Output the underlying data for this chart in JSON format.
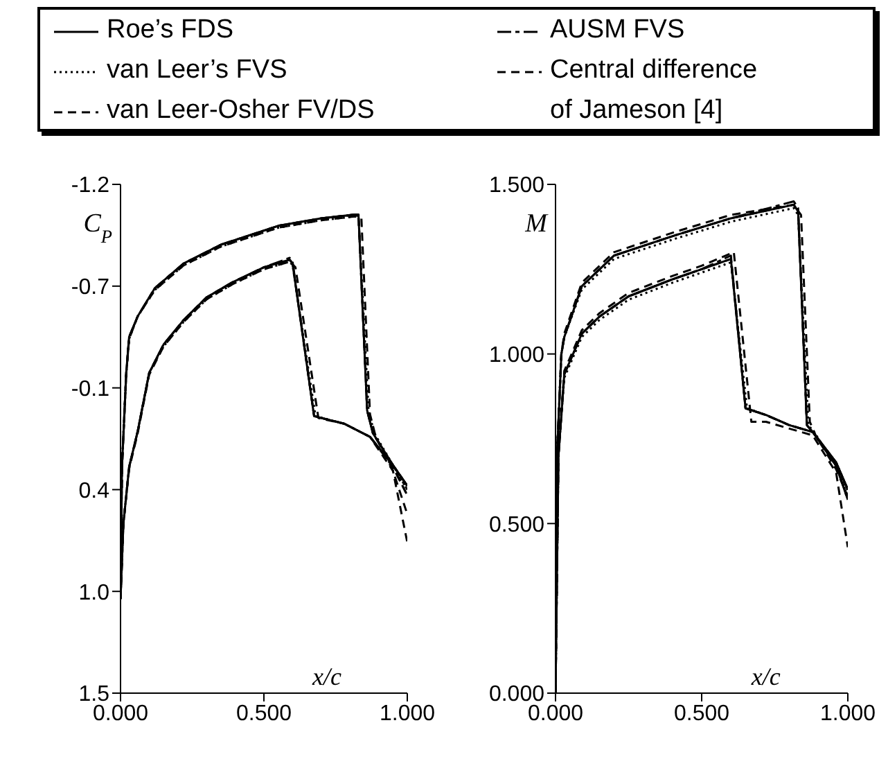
{
  "chart_data": [
    {
      "type": "line",
      "xlabel": "x/c",
      "ylabel": "C$_{P}$",
      "legend": "top",
      "marker": "none",
      "xlim": [
        0,
        1
      ],
      "xticks": [
        {
          "value": 0,
          "label": "0.000"
        },
        {
          "value": 0.5,
          "label": "0.500"
        },
        {
          "value": 1,
          "label": "1.000"
        }
      ],
      "ylim": [
        1.5,
        -1.2
      ],
      "yticks": [
        {
          "value": -1.2,
          "label": "-1.2"
        },
        {
          "value": -0.66,
          "label": "-0.7"
        },
        {
          "value": -0.12,
          "label": "-0.1"
        },
        {
          "value": 0.42,
          "label": "0.4"
        },
        {
          "value": 0.96,
          "label": "1.0"
        },
        {
          "value": 1.5,
          "label": "1.5"
        }
      ],
      "series": [
        {
          "name": "Roe’s FDS",
          "color": "#000000",
          "line_style": "solid",
          "x": [
            0.0,
            0.005,
            0.02,
            0.03,
            0.06,
            0.12,
            0.22,
            0.35,
            0.55,
            0.7,
            0.82,
            0.83,
            0.86,
            0.88,
            0.95,
            1.0
          ],
          "values": [
            1.0,
            0.3,
            -0.2,
            -0.39,
            -0.5,
            -0.65,
            -0.78,
            -0.88,
            -0.98,
            -1.02,
            -1.04,
            -1.03,
            0.0,
            0.12,
            0.29,
            0.4
          ]
        },
        {
          "color": "#000000",
          "line_style": "solid",
          "x": [
            0.0,
            0.01,
            0.03,
            0.06,
            0.1,
            0.15,
            0.22,
            0.3,
            0.39,
            0.5,
            0.59,
            0.6,
            0.675,
            0.78,
            0.87,
            0.95,
            1.0
          ],
          "values": [
            1.0,
            0.6,
            0.3,
            0.11,
            -0.2,
            -0.35,
            -0.48,
            -0.6,
            -0.68,
            -0.76,
            -0.8,
            -0.78,
            0.03,
            0.07,
            0.14,
            0.29,
            0.4
          ]
        },
        {
          "name": "van Leer’s FVS",
          "color": "#000000",
          "line_style": "dotted",
          "x": [
            0.0,
            0.005,
            0.02,
            0.03,
            0.06,
            0.12,
            0.22,
            0.35,
            0.55,
            0.7,
            0.82,
            0.83,
            0.865,
            0.885,
            0.95,
            1.0
          ],
          "values": [
            1.0,
            0.3,
            -0.2,
            -0.38,
            -0.5,
            -0.64,
            -0.77,
            -0.87,
            -0.97,
            -1.01,
            -1.03,
            -1.02,
            0.0,
            0.12,
            0.29,
            0.42
          ]
        },
        {
          "color": "#000000",
          "line_style": "dotted",
          "x": [
            0.0,
            0.01,
            0.03,
            0.06,
            0.1,
            0.15,
            0.22,
            0.3,
            0.39,
            0.5,
            0.59,
            0.6,
            0.68,
            0.78,
            0.87,
            0.95,
            1.0
          ],
          "values": [
            1.0,
            0.6,
            0.3,
            0.11,
            -0.2,
            -0.34,
            -0.47,
            -0.59,
            -0.67,
            -0.75,
            -0.79,
            -0.77,
            0.03,
            0.07,
            0.14,
            0.29,
            0.42
          ]
        },
        {
          "name": "van Leer-Osher FV/DS",
          "color": "#000000",
          "line_style": "dashed",
          "x": [
            0.0,
            0.005,
            0.02,
            0.03,
            0.06,
            0.12,
            0.22,
            0.35,
            0.55,
            0.7,
            0.82,
            0.83,
            0.86,
            0.88,
            0.95,
            1.0
          ],
          "values": [
            1.0,
            0.3,
            -0.2,
            -0.39,
            -0.5,
            -0.65,
            -0.78,
            -0.88,
            -0.98,
            -1.02,
            -1.04,
            -1.03,
            0.0,
            0.12,
            0.3,
            0.45
          ]
        },
        {
          "color": "#000000",
          "line_style": "dashed",
          "x": [
            0.0,
            0.01,
            0.03,
            0.06,
            0.1,
            0.15,
            0.22,
            0.3,
            0.39,
            0.5,
            0.59,
            0.6,
            0.675,
            0.78,
            0.87,
            0.95,
            1.0
          ],
          "values": [
            1.0,
            0.6,
            0.3,
            0.11,
            -0.2,
            -0.35,
            -0.48,
            -0.6,
            -0.68,
            -0.76,
            -0.8,
            -0.78,
            0.03,
            0.07,
            0.14,
            0.3,
            0.45
          ]
        },
        {
          "name": "AUSM FVS",
          "color": "#000000",
          "line_style": "dashdot",
          "x": [
            0.0,
            0.005,
            0.02,
            0.03,
            0.06,
            0.12,
            0.22,
            0.35,
            0.55,
            0.7,
            0.82,
            0.83,
            0.86,
            0.88,
            0.95,
            1.0
          ],
          "values": [
            1.0,
            0.3,
            -0.2,
            -0.39,
            -0.5,
            -0.65,
            -0.78,
            -0.88,
            -0.98,
            -1.02,
            -1.04,
            -1.04,
            0.0,
            0.12,
            0.29,
            0.4
          ]
        },
        {
          "color": "#000000",
          "line_style": "dashdot",
          "x": [
            0.0,
            0.01,
            0.03,
            0.06,
            0.1,
            0.15,
            0.22,
            0.3,
            0.39,
            0.5,
            0.59,
            0.6,
            0.675,
            0.78,
            0.87,
            0.95,
            1.0
          ],
          "values": [
            1.0,
            0.6,
            0.3,
            0.11,
            -0.2,
            -0.35,
            -0.48,
            -0.6,
            -0.68,
            -0.76,
            -0.81,
            -0.79,
            0.03,
            0.07,
            0.14,
            0.29,
            0.4
          ]
        },
        {
          "name": "Central difference\nof Jameson [4]",
          "color": "#000000",
          "line_style": "dashed",
          "x": [
            0.0,
            0.005,
            0.02,
            0.03,
            0.06,
            0.12,
            0.22,
            0.35,
            0.55,
            0.7,
            0.82,
            0.84,
            0.87,
            0.89,
            0.95,
            1.0
          ],
          "values": [
            1.0,
            0.3,
            -0.2,
            -0.38,
            -0.5,
            -0.64,
            -0.77,
            -0.87,
            -0.97,
            -1.01,
            -1.03,
            -1.02,
            0.02,
            0.14,
            0.32,
            0.55
          ]
        },
        {
          "color": "#000000",
          "line_style": "dashed",
          "x": [
            0.0,
            0.01,
            0.03,
            0.06,
            0.1,
            0.15,
            0.22,
            0.3,
            0.39,
            0.5,
            0.59,
            0.61,
            0.69,
            0.78,
            0.87,
            0.95,
            1.0
          ],
          "values": [
            1.0,
            0.6,
            0.31,
            0.12,
            -0.19,
            -0.34,
            -0.47,
            -0.59,
            -0.67,
            -0.75,
            -0.79,
            -0.76,
            0.04,
            0.07,
            0.14,
            0.32,
            0.7
          ]
        }
      ]
    },
    {
      "type": "line",
      "xlabel": "x/c",
      "ylabel": "M",
      "marker": "none",
      "xlim": [
        0,
        1
      ],
      "xticks": [
        {
          "value": 0,
          "label": "0.000"
        },
        {
          "value": 0.5,
          "label": "0.500"
        },
        {
          "value": 1,
          "label": "1.000"
        }
      ],
      "ylim": [
        0,
        1.5
      ],
      "yticks": [
        {
          "value": 0,
          "label": "0.000"
        },
        {
          "value": 0.5,
          "label": "0.500"
        },
        {
          "value": 1,
          "label": "1.000"
        },
        {
          "value": 1.5,
          "label": "1.500"
        }
      ],
      "series": [
        {
          "color": "#000000",
          "line_style": "solid",
          "x": [
            0.0,
            0.005,
            0.02,
            0.03,
            0.09,
            0.2,
            0.41,
            0.6,
            0.815,
            0.83,
            0.86,
            0.88,
            0.96,
            1.0
          ],
          "values": [
            0.0,
            0.7,
            1.0,
            1.05,
            1.2,
            1.29,
            1.35,
            1.4,
            1.44,
            1.42,
            0.79,
            0.77,
            0.68,
            0.6
          ]
        },
        {
          "color": "#000000",
          "line_style": "solid",
          "x": [
            0.0,
            0.01,
            0.03,
            0.09,
            0.15,
            0.25,
            0.4,
            0.5,
            0.6,
            0.65,
            0.72,
            0.8,
            0.88,
            0.96,
            1.0
          ],
          "values": [
            0.0,
            0.7,
            0.94,
            1.06,
            1.11,
            1.17,
            1.22,
            1.25,
            1.28,
            0.84,
            0.82,
            0.79,
            0.77,
            0.68,
            0.6
          ]
        },
        {
          "color": "#000000",
          "line_style": "dotted",
          "x": [
            0.0,
            0.005,
            0.02,
            0.03,
            0.09,
            0.2,
            0.41,
            0.6,
            0.815,
            0.83,
            0.865,
            0.885,
            0.96,
            1.0
          ],
          "values": [
            0.0,
            0.7,
            1.0,
            1.05,
            1.19,
            1.28,
            1.34,
            1.39,
            1.43,
            1.41,
            0.79,
            0.77,
            0.67,
            0.58
          ]
        },
        {
          "color": "#000000",
          "line_style": "dotted",
          "x": [
            0.0,
            0.01,
            0.03,
            0.09,
            0.15,
            0.25,
            0.4,
            0.5,
            0.6,
            0.655,
            0.72,
            0.8,
            0.88,
            0.96,
            1.0
          ],
          "values": [
            0.0,
            0.7,
            0.93,
            1.05,
            1.1,
            1.16,
            1.21,
            1.24,
            1.27,
            0.84,
            0.82,
            0.79,
            0.77,
            0.67,
            0.58
          ]
        },
        {
          "color": "#000000",
          "line_style": "dashed",
          "x": [
            0.0,
            0.005,
            0.02,
            0.03,
            0.09,
            0.2,
            0.41,
            0.6,
            0.815,
            0.83,
            0.86,
            0.88,
            0.96,
            1.0
          ],
          "values": [
            0.0,
            0.7,
            1.0,
            1.05,
            1.2,
            1.29,
            1.35,
            1.4,
            1.44,
            1.42,
            0.79,
            0.77,
            0.67,
            0.57
          ]
        },
        {
          "color": "#000000",
          "line_style": "dashed",
          "x": [
            0.0,
            0.01,
            0.03,
            0.09,
            0.15,
            0.25,
            0.4,
            0.5,
            0.6,
            0.65,
            0.72,
            0.8,
            0.88,
            0.96,
            1.0
          ],
          "values": [
            0.0,
            0.7,
            0.94,
            1.06,
            1.11,
            1.17,
            1.22,
            1.25,
            1.28,
            0.84,
            0.82,
            0.79,
            0.77,
            0.67,
            0.57
          ]
        },
        {
          "color": "#000000",
          "line_style": "dashdot",
          "x": [
            0.0,
            0.005,
            0.02,
            0.03,
            0.09,
            0.2,
            0.41,
            0.6,
            0.815,
            0.83,
            0.86,
            0.88,
            0.96,
            1.0
          ],
          "values": [
            0.0,
            0.7,
            1.0,
            1.05,
            1.2,
            1.29,
            1.35,
            1.4,
            1.45,
            1.43,
            0.79,
            0.77,
            0.68,
            0.6
          ]
        },
        {
          "color": "#000000",
          "line_style": "dashdot",
          "x": [
            0.0,
            0.01,
            0.03,
            0.09,
            0.15,
            0.25,
            0.4,
            0.5,
            0.6,
            0.65,
            0.72,
            0.8,
            0.88,
            0.96,
            1.0
          ],
          "values": [
            0.0,
            0.7,
            0.94,
            1.06,
            1.11,
            1.17,
            1.22,
            1.25,
            1.29,
            0.84,
            0.82,
            0.79,
            0.77,
            0.68,
            0.6
          ]
        },
        {
          "color": "#000000",
          "line_style": "dashed",
          "x": [
            0.0,
            0.005,
            0.02,
            0.03,
            0.09,
            0.2,
            0.41,
            0.6,
            0.815,
            0.84,
            0.87,
            0.89,
            0.96,
            1.0
          ],
          "values": [
            0.0,
            0.7,
            1.0,
            1.06,
            1.21,
            1.3,
            1.36,
            1.41,
            1.44,
            1.41,
            0.8,
            0.76,
            0.66,
            0.58
          ]
        },
        {
          "color": "#000000",
          "line_style": "dashed",
          "x": [
            0.0,
            0.01,
            0.03,
            0.09,
            0.15,
            0.25,
            0.4,
            0.5,
            0.61,
            0.67,
            0.72,
            0.8,
            0.88,
            0.96,
            1.0
          ],
          "values": [
            0.0,
            0.7,
            0.95,
            1.07,
            1.12,
            1.18,
            1.23,
            1.26,
            1.3,
            0.8,
            0.8,
            0.78,
            0.76,
            0.65,
            0.43
          ]
        }
      ]
    }
  ]
}
